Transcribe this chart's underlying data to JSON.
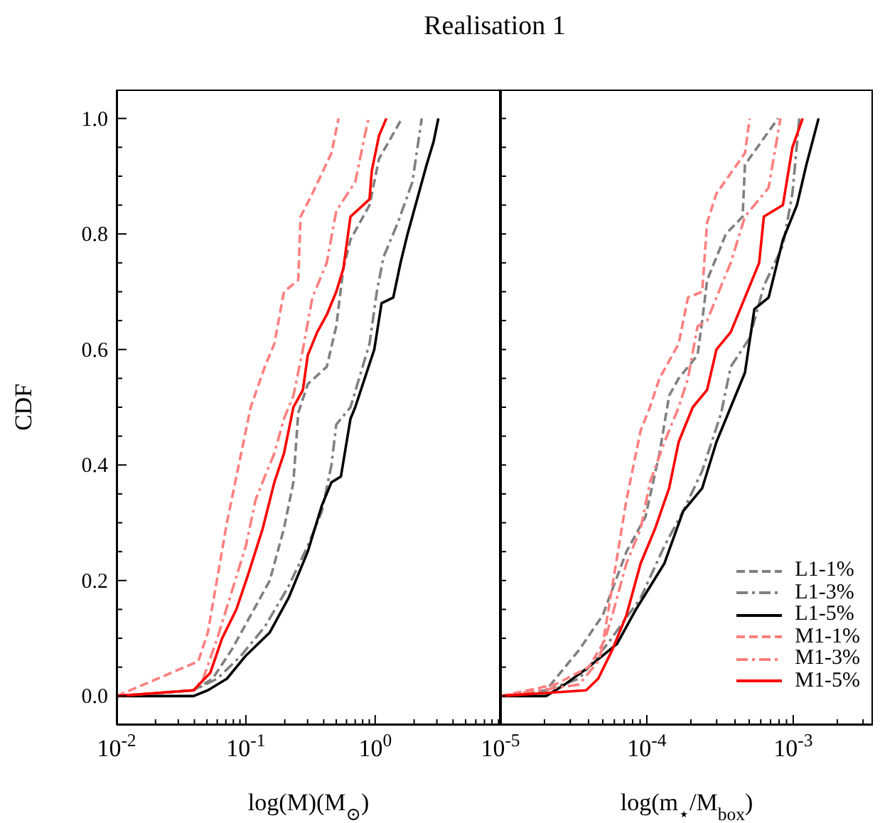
{
  "chart_data": [
    {
      "type": "line",
      "title": "Realisation 1",
      "xlabel": "log(M)(M$_{⊙}$)",
      "ylabel": "CDF",
      "log": "x",
      "legend": false,
      "xlim": [
        0.01,
        9.3
      ],
      "xticks": [
        {
          "value": 0.01,
          "label": "10$^{-2}$"
        },
        {
          "value": 0.02,
          "label": null
        },
        {
          "value": 0.03,
          "label": null
        },
        {
          "value": 0.04,
          "label": null
        },
        {
          "value": 0.05,
          "label": null
        },
        {
          "value": 0.06,
          "label": null
        },
        {
          "value": 0.07,
          "label": null
        },
        {
          "value": 0.08,
          "label": null
        },
        {
          "value": 0.09,
          "label": null
        },
        {
          "value": 0.1,
          "label": "10$^{-1}$"
        },
        {
          "value": 0.2,
          "label": null
        },
        {
          "value": 0.3,
          "label": null
        },
        {
          "value": 0.4,
          "label": null
        },
        {
          "value": 0.5,
          "label": null
        },
        {
          "value": 0.6,
          "label": null
        },
        {
          "value": 0.7,
          "label": null
        },
        {
          "value": 0.8,
          "label": null
        },
        {
          "value": 0.9,
          "label": null
        },
        {
          "value": 1,
          "label": "10$^{0}$"
        },
        {
          "value": 2,
          "label": null
        },
        {
          "value": 3,
          "label": null
        },
        {
          "value": 4,
          "label": null
        },
        {
          "value": 5,
          "label": null
        },
        {
          "value": 6,
          "label": null
        },
        {
          "value": 7,
          "label": null
        },
        {
          "value": 8,
          "label": null
        },
        {
          "value": 9,
          "label": null
        }
      ],
      "ylim": [
        -0.05,
        1.05
      ],
      "yticks": [
        {
          "value": 0,
          "label": "0.0"
        },
        {
          "value": 0.05,
          "label": null
        },
        {
          "value": 0.1,
          "label": null
        },
        {
          "value": 0.15,
          "label": null
        },
        {
          "value": 0.2,
          "label": "0.2"
        },
        {
          "value": 0.25,
          "label": null
        },
        {
          "value": 0.3,
          "label": null
        },
        {
          "value": 0.35,
          "label": null
        },
        {
          "value": 0.4,
          "label": "0.4"
        },
        {
          "value": 0.45,
          "label": null
        },
        {
          "value": 0.5,
          "label": null
        },
        {
          "value": 0.55,
          "label": null
        },
        {
          "value": 0.6,
          "label": "0.6"
        },
        {
          "value": 0.65,
          "label": null
        },
        {
          "value": 0.7,
          "label": null
        },
        {
          "value": 0.75,
          "label": null
        },
        {
          "value": 0.8,
          "label": "0.8"
        },
        {
          "value": 0.85,
          "label": null
        },
        {
          "value": 0.9,
          "label": null
        },
        {
          "value": 0.95,
          "label": null
        },
        {
          "value": 1,
          "label": "1.0"
        }
      ],
      "series": [
        {
          "color": "#808080",
          "line_style": "dashed",
          "x": [
            0.01,
            0.0394,
            0.0553,
            0.0776,
            0.109,
            0.153,
            0.197,
            0.233,
            0.254,
            0.301,
            0.422,
            0.5,
            0.567,
            0.644,
            0.904,
            1.07,
            1.61
          ],
          "values": [
            0,
            0.01,
            0.03,
            0.08,
            0.14,
            0.2,
            0.29,
            0.37,
            0.49,
            0.54,
            0.57,
            0.64,
            0.74,
            0.79,
            0.85,
            0.93,
            1.0
          ]
        },
        {
          "color": "#808080",
          "line_style": "dashdot",
          "x": [
            0.01,
            0.0394,
            0.0601,
            0.0919,
            0.14,
            0.214,
            0.301,
            0.387,
            0.459,
            0.5,
            0.644,
            0.904,
            1.03,
            1.16,
            1.5,
            1.94,
            2.29
          ],
          "values": [
            0,
            0.01,
            0.03,
            0.07,
            0.12,
            0.19,
            0.26,
            0.32,
            0.4,
            0.47,
            0.5,
            0.61,
            0.7,
            0.76,
            0.82,
            0.89,
            1.0
          ]
        },
        {
          "color": "#000000",
          "line_style": "solid",
          "x": [
            0.01,
            0.0394,
            0.0508,
            0.0713,
            0.1,
            0.153,
            0.214,
            0.301,
            0.387,
            0.459,
            0.543,
            0.644,
            0.701,
            0.83,
            0.984,
            1.12,
            1.38,
            1.57,
            1.78,
            2.11,
            2.5,
            2.83,
            3.08
          ],
          "values": [
            0,
            0.0,
            0.01,
            0.03,
            0.07,
            0.11,
            0.17,
            0.25,
            0.33,
            0.37,
            0.38,
            0.48,
            0.5,
            0.55,
            0.6,
            0.68,
            0.69,
            0.75,
            0.8,
            0.86,
            0.92,
            0.96,
            1.0
          ]
        },
        {
          "color": "#ff7f7f",
          "line_style": "dashed",
          "x": [
            0.01,
            0.0428,
            0.0508,
            0.0713,
            0.0919,
            0.109,
            0.14,
            0.166,
            0.197,
            0.254,
            0.265,
            0.327,
            0.459,
            0.521
          ],
          "values": [
            0,
            0.06,
            0.11,
            0.3,
            0.42,
            0.5,
            0.57,
            0.61,
            0.7,
            0.72,
            0.83,
            0.87,
            0.94,
            1.0
          ]
        },
        {
          "color": "#ff7f7f",
          "line_style": "dashdot",
          "x": [
            0.01,
            0.0394,
            0.0467,
            0.0601,
            0.0776,
            0.1,
            0.119,
            0.14,
            0.166,
            0.197,
            0.233,
            0.276,
            0.327,
            0.422,
            0.5,
            0.701,
            0.83,
            0.889
          ],
          "values": [
            0,
            0.01,
            0.03,
            0.1,
            0.18,
            0.26,
            0.34,
            0.38,
            0.42,
            0.48,
            0.52,
            0.6,
            0.69,
            0.75,
            0.84,
            0.89,
            0.97,
            1.0
          ]
        },
        {
          "color": "#ff0000",
          "line_style": "solid",
          "x": [
            0.01,
            0.0394,
            0.053,
            0.0655,
            0.0844,
            0.104,
            0.135,
            0.166,
            0.197,
            0.233,
            0.276,
            0.301,
            0.356,
            0.422,
            0.5,
            0.567,
            0.644,
            0.904,
            0.942,
            1.07,
            1.22
          ],
          "values": [
            0,
            0.01,
            0.04,
            0.1,
            0.15,
            0.21,
            0.29,
            0.37,
            0.42,
            0.5,
            0.53,
            0.59,
            0.63,
            0.66,
            0.7,
            0.74,
            0.83,
            0.86,
            0.91,
            0.97,
            1.0
          ]
        }
      ]
    },
    {
      "type": "line",
      "xlabel": "log(m$_{⋆}$/M$_{box}$)",
      "log": "x",
      "legend": "bottom right",
      "tick_labels": "x",
      "xlim": [
        1e-05,
        0.0035
      ],
      "xticks": [
        {
          "value": 1e-05,
          "label": "10$^{-5}$"
        },
        {
          "value": 2e-05,
          "label": null
        },
        {
          "value": 3e-05,
          "label": null
        },
        {
          "value": 4e-05,
          "label": null
        },
        {
          "value": 5e-05,
          "label": null
        },
        {
          "value": 6e-05,
          "label": null
        },
        {
          "value": 7e-05,
          "label": null
        },
        {
          "value": 8e-05,
          "label": null
        },
        {
          "value": 9e-05,
          "label": null
        },
        {
          "value": 0.0001,
          "label": "10$^{-4}$"
        },
        {
          "value": 0.0002,
          "label": null
        },
        {
          "value": 0.0003,
          "label": null
        },
        {
          "value": 0.0004,
          "label": null
        },
        {
          "value": 0.0005,
          "label": null
        },
        {
          "value": 0.0006,
          "label": null
        },
        {
          "value": 0.0007,
          "label": null
        },
        {
          "value": 0.0008,
          "label": null
        },
        {
          "value": 0.0009,
          "label": null
        },
        {
          "value": 0.001,
          "label": "10$^{-3}$"
        },
        {
          "value": 0.002,
          "label": null
        },
        {
          "value": 0.003,
          "label": null
        }
      ],
      "ylim": [
        -0.05,
        1.05
      ],
      "yticks": [
        {
          "value": 0,
          "label": null
        },
        {
          "value": 0.05,
          "label": null
        },
        {
          "value": 0.1,
          "label": null
        },
        {
          "value": 0.15,
          "label": null
        },
        {
          "value": 0.2,
          "label": null
        },
        {
          "value": 0.25,
          "label": null
        },
        {
          "value": 0.3,
          "label": null
        },
        {
          "value": 0.35,
          "label": null
        },
        {
          "value": 0.4,
          "label": null
        },
        {
          "value": 0.45,
          "label": null
        },
        {
          "value": 0.5,
          "label": null
        },
        {
          "value": 0.55,
          "label": null
        },
        {
          "value": 0.6,
          "label": null
        },
        {
          "value": 0.65,
          "label": null
        },
        {
          "value": 0.7,
          "label": null
        },
        {
          "value": 0.75,
          "label": null
        },
        {
          "value": 0.8,
          "label": null
        },
        {
          "value": 0.85,
          "label": null
        },
        {
          "value": 0.9,
          "label": null
        },
        {
          "value": 0.95,
          "label": null
        },
        {
          "value": 1,
          "label": null
        }
      ],
      "series": [
        {
          "name": "L1-1%",
          "color": "#808080",
          "line_style": "dashed",
          "x": [
            1e-05,
            2.05e-05,
            3.45e-05,
            5e-05,
            7.26e-05,
            9.78e-05,
            0.000122,
            0.000142,
            0.000165,
            0.000222,
            0.000239,
            0.000258,
            0.000347,
            0.000451,
            0.000468,
            0.000787
          ],
          "values": [
            0,
            0.01,
            0.08,
            0.14,
            0.25,
            0.31,
            0.42,
            0.52,
            0.55,
            0.59,
            0.65,
            0.72,
            0.8,
            0.83,
            0.92,
            1.0
          ]
        },
        {
          "name": "L1-3%",
          "color": "#808080",
          "line_style": "dashdot",
          "x": [
            1e-05,
            2.05e-05,
            3.45e-05,
            5.38e-05,
            9.08e-05,
            0.000132,
            0.000177,
            0.000239,
            0.000322,
            0.000374,
            0.000504,
            0.00063,
            0.00085,
            0.000987,
            0.0011
          ],
          "values": [
            0,
            0.01,
            0.03,
            0.09,
            0.17,
            0.26,
            0.32,
            0.39,
            0.49,
            0.57,
            0.62,
            0.71,
            0.78,
            0.87,
            1.0
          ]
        },
        {
          "name": "L1-5%",
          "color": "#000000",
          "line_style": "solid",
          "x": [
            1e-05,
            2.05e-05,
            2.75e-05,
            4e-05,
            6.25e-05,
            8.43e-05,
            0.000132,
            0.000177,
            0.000239,
            0.000299,
            0.000374,
            0.000468,
            0.000543,
            0.000679,
            0.00085,
            0.00106,
            0.00123,
            0.00149
          ],
          "values": [
            0,
            0.0,
            0.02,
            0.05,
            0.09,
            0.15,
            0.23,
            0.32,
            0.36,
            0.44,
            0.5,
            0.56,
            0.67,
            0.69,
            0.79,
            0.85,
            0.92,
            1.0
          ]
        },
        {
          "name": "M1-1%",
          "color": "#ff7f7f",
          "line_style": "dashed",
          "x": [
            1e-05,
            2.37e-05,
            4e-05,
            5e-05,
            5.81e-05,
            7.26e-05,
            9.08e-05,
            0.000105,
            0.000122,
            0.000165,
            0.000191,
            0.000239,
            0.000258,
            0.000299,
            0.000468,
            0.000504
          ],
          "values": [
            0,
            0.02,
            0.05,
            0.09,
            0.19,
            0.34,
            0.46,
            0.5,
            0.55,
            0.61,
            0.69,
            0.7,
            0.82,
            0.87,
            0.94,
            1.0
          ]
        },
        {
          "name": "M1-3%",
          "color": "#ff7f7f",
          "line_style": "dashdot",
          "x": [
            1e-05,
            3.45e-05,
            4.65e-05,
            5.81e-05,
            7.26e-05,
            9.08e-05,
            0.000105,
            0.000132,
            0.000165,
            0.000191,
            0.000222,
            0.000258,
            0.000322,
            0.000374,
            0.000468,
            0.000679,
            0.000818
          ],
          "values": [
            0,
            0.02,
            0.06,
            0.14,
            0.23,
            0.29,
            0.37,
            0.44,
            0.5,
            0.55,
            0.64,
            0.65,
            0.71,
            0.75,
            0.83,
            0.88,
            1.0
          ]
        },
        {
          "name": "M1-5%",
          "color": "#ff0000",
          "line_style": "solid",
          "x": [
            1e-05,
            3.85e-05,
            4.65e-05,
            5.81e-05,
            7.26e-05,
            9.08e-05,
            0.000114,
            0.000142,
            0.000165,
            0.000206,
            0.000258,
            0.000299,
            0.000374,
            0.000468,
            0.000585,
            0.00063,
            0.00085,
            0.000987,
            0.00116
          ],
          "values": [
            0,
            0.01,
            0.03,
            0.08,
            0.14,
            0.23,
            0.29,
            0.36,
            0.44,
            0.5,
            0.53,
            0.6,
            0.63,
            0.69,
            0.75,
            0.83,
            0.85,
            0.95,
            1.0
          ]
        }
      ]
    }
  ]
}
